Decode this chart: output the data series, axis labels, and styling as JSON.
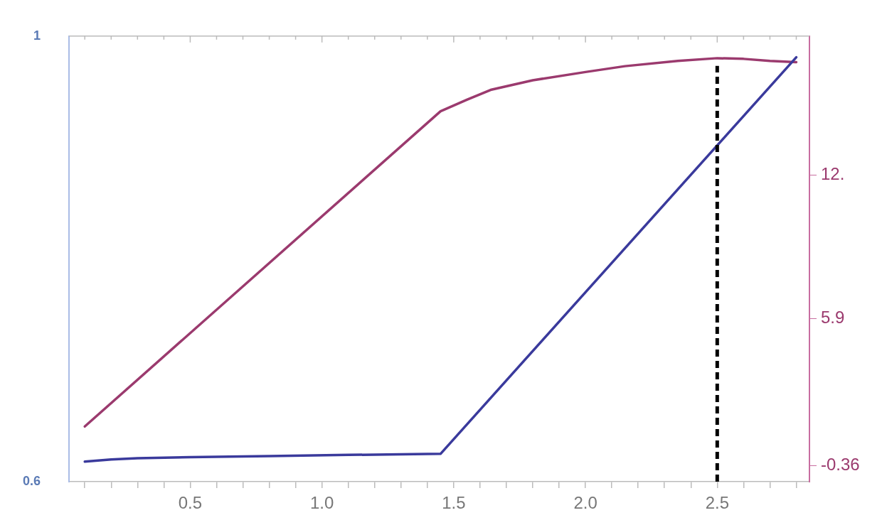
{
  "chart_data": {
    "type": "line",
    "xlim": [
      0.04,
      2.85
    ],
    "xticks": [
      {
        "value": 0.1,
        "label": null
      },
      {
        "value": 0.2,
        "label": null
      },
      {
        "value": 0.3,
        "label": null
      },
      {
        "value": 0.4,
        "label": null
      },
      0.5,
      {
        "value": 0.6,
        "label": null
      },
      {
        "value": 0.7,
        "label": null
      },
      {
        "value": 0.8,
        "label": null
      },
      {
        "value": 0.9,
        "label": null
      },
      {
        "value": 1,
        "label": "1.0"
      },
      {
        "value": 1.1,
        "label": null
      },
      {
        "value": 1.2,
        "label": null
      },
      {
        "value": 1.3,
        "label": null
      },
      {
        "value": 1.4,
        "label": null
      },
      1.5,
      {
        "value": 1.6,
        "label": null
      },
      {
        "value": 1.7,
        "label": null
      },
      {
        "value": 1.8,
        "label": null
      },
      {
        "value": 1.9,
        "label": null
      },
      {
        "value": 2,
        "label": "2.0"
      },
      {
        "value": 2.1,
        "label": null
      },
      {
        "value": 2.2,
        "label": null
      },
      {
        "value": 2.3,
        "label": null
      },
      {
        "value": 2.4,
        "label": null
      },
      2.5,
      {
        "value": 2.6,
        "label": null
      },
      {
        "value": 2.7,
        "label": null
      },
      {
        "value": 2.8,
        "label": null
      }
    ],
    "ylim": [
      0.6,
      1
    ],
    "yticks": [
      0.6,
      1
    ],
    "y2lim": [
      -1.04,
      17.93
    ],
    "y2ticks": [
      -0.36,
      5.9,
      {
        "value": 12,
        "label": "12."
      }
    ],
    "series": [
      {
        "color": "#3a3a9c",
        "x": [
          0.1,
          0.15,
          0.2,
          0.3,
          0.5,
          0.8,
          1.1,
          1.45,
          2.8
        ],
        "values": [
          0.618,
          0.619,
          0.62,
          0.621,
          0.622,
          0.623,
          0.624,
          0.625,
          0.981
        ]
      },
      {
        "color": "#9b3a6e",
        "axis": "y2",
        "x": [
          0.1,
          1.45,
          1.55,
          1.64,
          1.8,
          2.0,
          2.15,
          2.35,
          2.5,
          2.6,
          2.7,
          2.8
        ],
        "values": [
          1.31,
          14.73,
          15.22,
          15.64,
          16.05,
          16.4,
          16.65,
          16.87,
          16.99,
          16.96,
          16.87,
          16.82
        ]
      }
    ],
    "ref_lines": [
      {
        "axis": "x",
        "value": 2.5,
        "color": "#000000",
        "line_style": "dashed"
      }
    ],
    "grid": false,
    "legend": false,
    "marker": "none",
    "line_style": "solid"
  }
}
